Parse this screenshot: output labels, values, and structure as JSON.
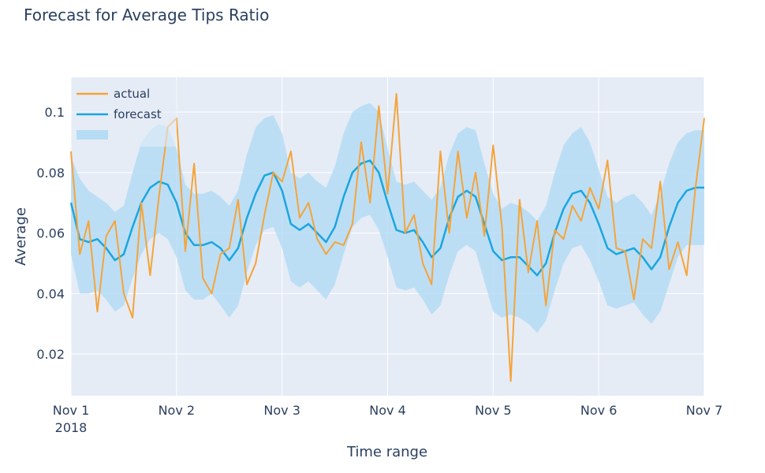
{
  "chart_data": {
    "type": "line",
    "title": "Forecast for Average Tips Ratio",
    "x_label": "Time range",
    "y_label": "Average",
    "x": [
      "2018-11-01T00:00",
      "2018-11-01T02:00",
      "2018-11-01T04:00",
      "2018-11-01T06:00",
      "2018-11-01T08:00",
      "2018-11-01T10:00",
      "2018-11-01T12:00",
      "2018-11-01T14:00",
      "2018-11-01T16:00",
      "2018-11-01T18:00",
      "2018-11-01T20:00",
      "2018-11-01T22:00",
      "2018-11-02T00:00",
      "2018-11-02T02:00",
      "2018-11-02T04:00",
      "2018-11-02T06:00",
      "2018-11-02T08:00",
      "2018-11-02T10:00",
      "2018-11-02T12:00",
      "2018-11-02T14:00",
      "2018-11-02T16:00",
      "2018-11-02T18:00",
      "2018-11-02T20:00",
      "2018-11-02T22:00",
      "2018-11-03T00:00",
      "2018-11-03T02:00",
      "2018-11-03T04:00",
      "2018-11-03T06:00",
      "2018-11-03T08:00",
      "2018-11-03T10:00",
      "2018-11-03T12:00",
      "2018-11-03T14:00",
      "2018-11-03T16:00",
      "2018-11-03T18:00",
      "2018-11-03T20:00",
      "2018-11-03T22:00",
      "2018-11-04T00:00",
      "2018-11-04T02:00",
      "2018-11-04T04:00",
      "2018-11-04T06:00",
      "2018-11-04T08:00",
      "2018-11-04T10:00",
      "2018-11-04T12:00",
      "2018-11-04T14:00",
      "2018-11-04T16:00",
      "2018-11-04T18:00",
      "2018-11-04T20:00",
      "2018-11-04T22:00",
      "2018-11-05T00:00",
      "2018-11-05T02:00",
      "2018-11-05T04:00",
      "2018-11-05T06:00",
      "2018-11-05T08:00",
      "2018-11-05T10:00",
      "2018-11-05T12:00",
      "2018-11-05T14:00",
      "2018-11-05T16:00",
      "2018-11-05T18:00",
      "2018-11-05T20:00",
      "2018-11-05T22:00",
      "2018-11-06T00:00",
      "2018-11-06T02:00",
      "2018-11-06T04:00",
      "2018-11-06T06:00",
      "2018-11-06T08:00",
      "2018-11-06T10:00",
      "2018-11-06T12:00",
      "2018-11-06T14:00",
      "2018-11-06T16:00",
      "2018-11-06T18:00",
      "2018-11-06T20:00",
      "2018-11-06T22:00",
      "2018-11-07T00:00"
    ],
    "series": [
      {
        "name": "actual",
        "color": "#f5a43a",
        "values": [
          0.087,
          0.053,
          0.064,
          0.034,
          0.059,
          0.064,
          0.04,
          0.032,
          0.07,
          0.046,
          0.072,
          0.095,
          0.098,
          0.054,
          0.083,
          0.045,
          0.04,
          0.053,
          0.055,
          0.071,
          0.043,
          0.05,
          0.066,
          0.08,
          0.077,
          0.087,
          0.065,
          0.07,
          0.058,
          0.053,
          0.057,
          0.056,
          0.063,
          0.09,
          0.07,
          0.102,
          0.073,
          0.106,
          0.06,
          0.066,
          0.05,
          0.043,
          0.087,
          0.06,
          0.087,
          0.065,
          0.08,
          0.059,
          0.089,
          0.062,
          0.011,
          0.071,
          0.047,
          0.064,
          0.036,
          0.061,
          0.058,
          0.069,
          0.064,
          0.075,
          0.068,
          0.084,
          0.055,
          0.054,
          0.038,
          0.058,
          0.055,
          0.077,
          0.048,
          0.057,
          0.046,
          0.075,
          0.098
        ]
      },
      {
        "name": "forecast",
        "color": "#1ba6df",
        "values": [
          0.07,
          0.058,
          0.057,
          0.058,
          0.055,
          0.051,
          0.053,
          0.062,
          0.07,
          0.075,
          0.077,
          0.076,
          0.07,
          0.06,
          0.056,
          0.056,
          0.057,
          0.055,
          0.051,
          0.055,
          0.065,
          0.073,
          0.079,
          0.08,
          0.074,
          0.063,
          0.061,
          0.063,
          0.06,
          0.057,
          0.062,
          0.072,
          0.08,
          0.083,
          0.084,
          0.08,
          0.07,
          0.061,
          0.06,
          0.061,
          0.057,
          0.052,
          0.055,
          0.065,
          0.072,
          0.074,
          0.072,
          0.063,
          0.054,
          0.051,
          0.052,
          0.052,
          0.049,
          0.046,
          0.05,
          0.06,
          0.068,
          0.073,
          0.074,
          0.07,
          0.063,
          0.055,
          0.053,
          0.054,
          0.055,
          0.052,
          0.048,
          0.052,
          0.062,
          0.07,
          0.074,
          0.075,
          0.075
        ]
      },
      {
        "color": "#b5dcf4",
        "upper": [
          0.085,
          0.078,
          0.074,
          0.072,
          0.07,
          0.067,
          0.069,
          0.08,
          0.09,
          0.094,
          0.096,
          0.095,
          0.088,
          0.076,
          0.073,
          0.073,
          0.074,
          0.072,
          0.069,
          0.074,
          0.086,
          0.095,
          0.098,
          0.099,
          0.093,
          0.08,
          0.078,
          0.08,
          0.077,
          0.075,
          0.082,
          0.093,
          0.1,
          0.102,
          0.103,
          0.1,
          0.088,
          0.077,
          0.076,
          0.077,
          0.074,
          0.071,
          0.075,
          0.086,
          0.093,
          0.095,
          0.094,
          0.083,
          0.073,
          0.068,
          0.07,
          0.069,
          0.067,
          0.064,
          0.069,
          0.08,
          0.089,
          0.093,
          0.095,
          0.09,
          0.081,
          0.072,
          0.07,
          0.072,
          0.073,
          0.07,
          0.066,
          0.073,
          0.083,
          0.09,
          0.093,
          0.094,
          0.094
        ],
        "lower": [
          0.053,
          0.04,
          0.04,
          0.041,
          0.038,
          0.034,
          0.036,
          0.045,
          0.053,
          0.058,
          0.06,
          0.058,
          0.052,
          0.041,
          0.038,
          0.038,
          0.04,
          0.036,
          0.032,
          0.036,
          0.047,
          0.056,
          0.061,
          0.062,
          0.055,
          0.044,
          0.042,
          0.044,
          0.041,
          0.038,
          0.043,
          0.053,
          0.062,
          0.065,
          0.066,
          0.061,
          0.052,
          0.042,
          0.041,
          0.042,
          0.038,
          0.033,
          0.036,
          0.046,
          0.054,
          0.056,
          0.054,
          0.044,
          0.034,
          0.032,
          0.033,
          0.032,
          0.03,
          0.027,
          0.031,
          0.041,
          0.05,
          0.055,
          0.056,
          0.051,
          0.044,
          0.036,
          0.035,
          0.036,
          0.037,
          0.033,
          0.03,
          0.034,
          0.043,
          0.052,
          0.056,
          0.056,
          0.056
        ]
      }
    ],
    "xlim": [
      "2018-11-01T00:00",
      "2018-11-07T00:00"
    ],
    "xticks": [
      {
        "value": "2018-11-01T00:00",
        "label": "Nov 1\n2018"
      },
      {
        "value": "2018-11-02T00:00",
        "label": "Nov 2"
      },
      {
        "value": "2018-11-03T00:00",
        "label": "Nov 3"
      },
      {
        "value": "2018-11-04T00:00",
        "label": "Nov 4"
      },
      {
        "value": "2018-11-05T00:00",
        "label": "Nov 5"
      },
      {
        "value": "2018-11-06T00:00",
        "label": "Nov 6"
      },
      {
        "value": "2018-11-07T00:00",
        "label": "Nov 7"
      }
    ],
    "ylim": [
      0.0062,
      0.1115
    ],
    "yticks": [
      0.02,
      0.04,
      0.06,
      0.08,
      0.1
    ],
    "grid": true,
    "legend": "top-left"
  }
}
